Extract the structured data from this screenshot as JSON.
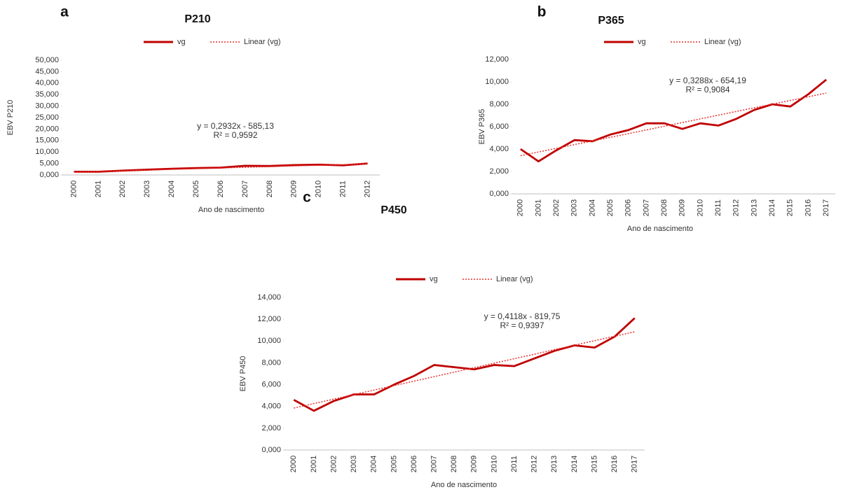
{
  "chart_data": [
    {
      "type": "line",
      "panel": "a",
      "title": "P210",
      "y_label": "EBV P210",
      "x_label": "Ano de nascimento",
      "equation": "y = 0,2932x - 585,13",
      "r_squared": "R² = 0,9592",
      "categories": [
        "2000",
        "2001",
        "2002",
        "2003",
        "2004",
        "2005",
        "2006",
        "2007",
        "2008",
        "2009",
        "2010",
        "2011",
        "2012"
      ],
      "series": [
        {
          "name": "vg",
          "color": "#c00000",
          "style": "solid",
          "values": [
            1.4,
            1.4,
            1.9,
            2.3,
            2.7,
            3.0,
            3.2,
            4.0,
            3.9,
            4.3,
            4.5,
            4.2,
            5.0
          ]
        },
        {
          "name": "Linear (vg)",
          "color": "#e8302c",
          "style": "dotted",
          "values": [
            1.27,
            1.56,
            1.86,
            2.15,
            2.44,
            2.74,
            3.03,
            3.32,
            3.62,
            3.91,
            4.2,
            4.5,
            4.79
          ]
        }
      ],
      "ylim": [
        0,
        50
      ],
      "yticks": [
        {
          "value": 0,
          "label": "0,000"
        },
        {
          "value": 5,
          "label": "5,000"
        },
        {
          "value": 10,
          "label": "10,000"
        },
        {
          "value": 15,
          "label": "15,000"
        },
        {
          "value": 20,
          "label": "20,000"
        },
        {
          "value": 25,
          "label": "25,000"
        },
        {
          "value": 30,
          "label": "30,000"
        },
        {
          "value": 35,
          "label": "35,000"
        },
        {
          "value": 40,
          "label": "40,000"
        },
        {
          "value": 45,
          "label": "45,000"
        },
        {
          "value": 50,
          "label": "50,000"
        }
      ]
    },
    {
      "type": "line",
      "panel": "b",
      "title": "P365",
      "y_label": "EBV P365",
      "x_label": "Ano de nascimento",
      "equation": "y = 0,3288x - 654,19",
      "r_squared": "R² = 0,9084",
      "categories": [
        "2000",
        "2001",
        "2002",
        "2003",
        "2004",
        "2005",
        "2006",
        "2007",
        "2008",
        "2009",
        "2010",
        "2011",
        "2012",
        "2013",
        "2014",
        "2015",
        "2016",
        "2017"
      ],
      "series": [
        {
          "name": "vg",
          "color": "#c00000",
          "style": "solid",
          "values": [
            4.0,
            2.9,
            3.9,
            4.8,
            4.7,
            5.3,
            5.7,
            6.3,
            6.3,
            5.8,
            6.3,
            6.1,
            6.7,
            7.5,
            8.0,
            7.8,
            8.9,
            10.2
          ]
        },
        {
          "name": "Linear (vg)",
          "color": "#e8302c",
          "style": "dotted",
          "values": [
            3.41,
            3.74,
            4.07,
            4.4,
            4.73,
            5.05,
            5.38,
            5.71,
            6.04,
            6.37,
            6.7,
            7.03,
            7.36,
            7.69,
            8.01,
            8.34,
            8.67,
            9.0
          ]
        }
      ],
      "ylim": [
        0,
        12
      ],
      "yticks": [
        {
          "value": 0,
          "label": "0,000"
        },
        {
          "value": 2,
          "label": "2,000"
        },
        {
          "value": 4,
          "label": "4,000"
        },
        {
          "value": 6,
          "label": "6,000"
        },
        {
          "value": 8,
          "label": "8,000"
        },
        {
          "value": 10,
          "label": "10,000"
        },
        {
          "value": 12,
          "label": "12,000"
        }
      ]
    },
    {
      "type": "line",
      "panel": "c",
      "title": "P450",
      "y_label": "EBV P450",
      "x_label": "Ano de nascimento",
      "equation": "y = 0,4118x - 819,75",
      "r_squared": "R² = 0,9397",
      "categories": [
        "2000",
        "2001",
        "2002",
        "2003",
        "2004",
        "2005",
        "2006",
        "2007",
        "2008",
        "2009",
        "2010",
        "2011",
        "2012",
        "2013",
        "2014",
        "2015",
        "2016",
        "2017"
      ],
      "series": [
        {
          "name": "vg",
          "color": "#c00000",
          "style": "solid",
          "values": [
            4.6,
            3.6,
            4.5,
            5.1,
            5.1,
            6.0,
            6.8,
            7.8,
            7.6,
            7.4,
            7.8,
            7.7,
            8.4,
            9.1,
            9.6,
            9.4,
            10.4,
            12.1
          ]
        },
        {
          "name": "Linear (vg)",
          "color": "#e8302c",
          "style": "dotted",
          "values": [
            3.85,
            4.26,
            4.67,
            5.09,
            5.5,
            5.91,
            6.32,
            6.73,
            7.15,
            7.56,
            7.97,
            8.38,
            8.79,
            9.21,
            9.62,
            10.03,
            10.44,
            10.85
          ]
        }
      ],
      "ylim": [
        0,
        14
      ],
      "yticks": [
        {
          "value": 0,
          "label": "0,000"
        },
        {
          "value": 2,
          "label": "2,000"
        },
        {
          "value": 4,
          "label": "4,000"
        },
        {
          "value": 6,
          "label": "6,000"
        },
        {
          "value": 8,
          "label": "8,000"
        },
        {
          "value": 10,
          "label": "10,000"
        },
        {
          "value": 12,
          "label": "12,000"
        },
        {
          "value": 14,
          "label": "14,000"
        }
      ]
    }
  ]
}
